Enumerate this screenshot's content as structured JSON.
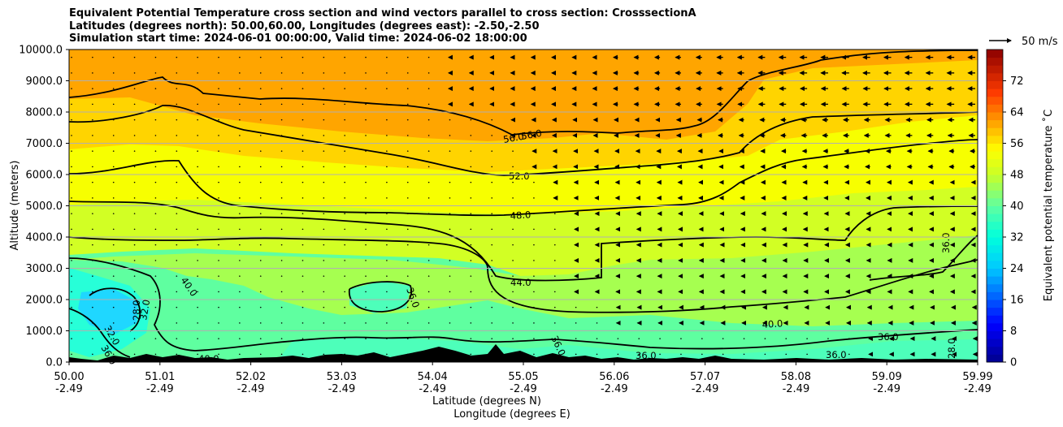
{
  "title_lines": [
    "Equivalent Potential Temperature cross section and wind vectors parallel to cross section: CrosssectionA",
    "Latitudes (degrees north): 50.00,60.00, Longitudes (degrees east): -2.50,-2.50",
    "Simulation start time: 2024-06-01 00:00:00, Valid time: 2024-06-02 18:00:00"
  ],
  "chart_data": {
    "type": "heatmap",
    "subtype": "cross-section contour with wind vectors",
    "ylabel": "Altitude (meters)",
    "xlabel_line1": "Latitude (degrees N)",
    "xlabel_line2": "Longitude (degrees E)",
    "ylim": [
      0,
      10000
    ],
    "yticks": [
      "0.0",
      "1000.0",
      "2000.0",
      "3000.0",
      "4000.0",
      "5000.0",
      "6000.0",
      "7000.0",
      "8000.0",
      "9000.0",
      "10000.0"
    ],
    "xticks": [
      {
        "lat": "50.00",
        "lon": "-2.49"
      },
      {
        "lat": "51.01",
        "lon": "-2.49"
      },
      {
        "lat": "52.02",
        "lon": "-2.49"
      },
      {
        "lat": "53.03",
        "lon": "-2.49"
      },
      {
        "lat": "54.04",
        "lon": "-2.49"
      },
      {
        "lat": "55.05",
        "lon": "-2.49"
      },
      {
        "lat": "56.06",
        "lon": "-2.49"
      },
      {
        "lat": "57.07",
        "lon": "-2.49"
      },
      {
        "lat": "58.08",
        "lon": "-2.49"
      },
      {
        "lat": "59.09",
        "lon": "-2.49"
      },
      {
        "lat": "59.99",
        "lon": "-2.49"
      }
    ],
    "grid": "horizontal",
    "colorbar": {
      "label": "Equivalent potential temperature ˚C",
      "range": [
        0,
        80
      ],
      "ticks": [
        "0",
        "8",
        "16",
        "24",
        "32",
        "40",
        "48",
        "56",
        "64",
        "72"
      ]
    },
    "contour_levels": [
      {
        "value": 56.0,
        "label": "56.0"
      },
      {
        "value": 52.0,
        "label": "52.0"
      },
      {
        "value": 48.0,
        "label": "48.0"
      },
      {
        "value": 44.0,
        "label": "44.0"
      },
      {
        "value": 40.0,
        "label": "40.0"
      },
      {
        "value": 36.0,
        "label": "36.0"
      },
      {
        "value": 32.0,
        "label": "32.0"
      },
      {
        "value": 28.0,
        "label": "28.0"
      }
    ],
    "wind_key": {
      "label": "50 m/s",
      "speed": 50
    },
    "wind_profile": [
      {
        "x": 0.0,
        "u": [
          0,
          0,
          0,
          0,
          0,
          0,
          0,
          0,
          0,
          0
        ]
      },
      {
        "x": 0.45,
        "u": [
          0,
          0,
          0,
          0,
          0,
          0,
          -1,
          -2,
          -3,
          -3
        ]
      },
      {
        "x": 0.6,
        "u": [
          -1,
          -3,
          -4,
          -4,
          -4,
          -5,
          -6,
          -8,
          -10,
          -10
        ]
      },
      {
        "x": 0.8,
        "u": [
          -2,
          -5,
          -7,
          -7,
          -8,
          -9,
          -10,
          -12,
          -15,
          -16
        ]
      },
      {
        "x": 1.0,
        "u": [
          -4,
          -6,
          -8,
          -8,
          -8,
          -8,
          -11,
          -14,
          -16,
          -16
        ]
      }
    ]
  }
}
